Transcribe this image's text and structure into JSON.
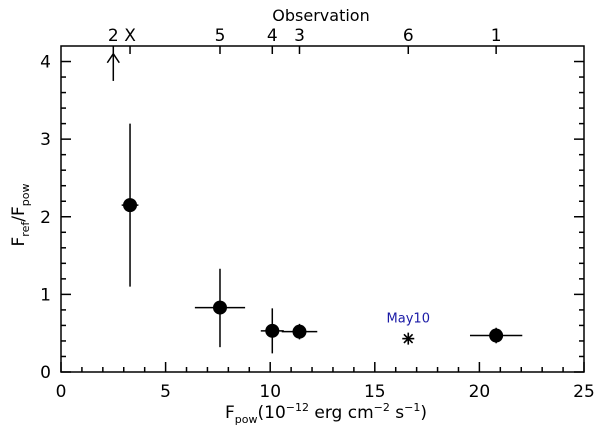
{
  "chart_data": {
    "type": "scatter",
    "xlim": [
      0,
      25
    ],
    "ylim": [
      0,
      4.2
    ],
    "x_ticks": [
      0,
      5,
      10,
      15,
      20,
      25
    ],
    "y_ticks": [
      0,
      1,
      2,
      3,
      4
    ],
    "xlabel": {
      "base": "F",
      "sub": "pow",
      "rest": "(10",
      "sup": "−12",
      "rest2": " erg cm",
      "sup2": "−2",
      "rest3": " s",
      "sup3": "−1",
      "rest4": ")"
    },
    "ylabel": {
      "base1": "F",
      "sub1": "ref",
      "mid": "/F",
      "sub2": "pow"
    },
    "top_axis_title": "Observation",
    "top_labels": [
      {
        "text": "2",
        "x": 2.5
      },
      {
        "text": "X",
        "x": 3.3
      },
      {
        "text": "5",
        "x": 7.6
      },
      {
        "text": "4",
        "x": 10.1
      },
      {
        "text": "3",
        "x": 11.4
      },
      {
        "text": "6",
        "x": 16.6
      },
      {
        "text": "1",
        "x": 20.8
      }
    ],
    "points": [
      {
        "x": 3.3,
        "y": 2.15,
        "xerr": 0.4,
        "ylo": 1.1,
        "yhi": 3.2
      },
      {
        "x": 7.6,
        "y": 0.83,
        "xerr": 1.2,
        "ylo": 0.32,
        "yhi": 1.33
      },
      {
        "x": 10.1,
        "y": 0.53,
        "xerr": 0.55,
        "ylo": 0.24,
        "yhi": 0.82
      },
      {
        "x": 11.4,
        "y": 0.52,
        "xerr": 0.85,
        "ylo": 0.42,
        "yhi": 0.62
      },
      {
        "x": 20.8,
        "y": 0.47,
        "xerr": 1.25,
        "ylo": 0.37,
        "yhi": 0.57
      }
    ],
    "star_point": {
      "x": 16.6,
      "y": 0.43
    },
    "annotation": {
      "text": "May10",
      "x": 16.6,
      "y": 0.43,
      "color": "#1a1aa6"
    },
    "limit_arrow": {
      "x": 2.5,
      "y_base": 3.75,
      "y_tip": 4.1
    }
  }
}
